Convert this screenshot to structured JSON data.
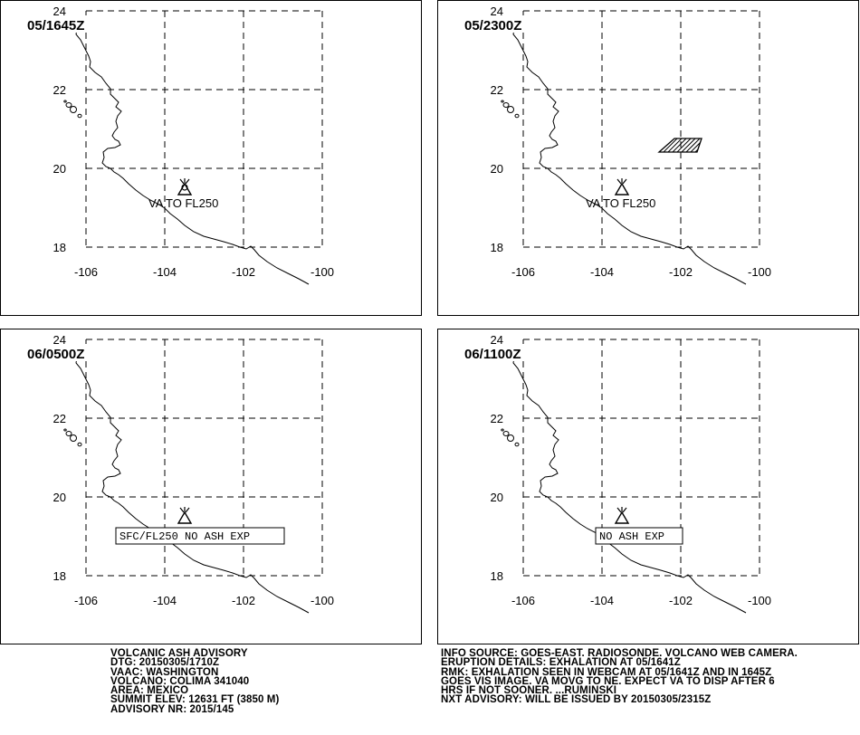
{
  "map": {
    "lon_ticks": [
      "-106",
      "-104",
      "-102",
      "-100"
    ],
    "lat_ticks": [
      "24",
      "22",
      "20",
      "18"
    ]
  },
  "panels": [
    {
      "id": "p1",
      "title": "05/1645Z",
      "label": "VA TO FL250",
      "label_style": "plain",
      "ash_area": false
    },
    {
      "id": "p2",
      "title": "05/2300Z",
      "label": "VA TO FL250",
      "label_style": "plain",
      "ash_area": true
    },
    {
      "id": "p3",
      "title": "06/0500Z",
      "label": "SFC/FL250 NO ASH EXP",
      "label_style": "boxed",
      "ash_area": false
    },
    {
      "id": "p4",
      "title": "06/1100Z",
      "label": "NO ASH EXP",
      "label_style": "boxed",
      "ash_area": false
    }
  ],
  "advisory": {
    "lines": [
      "VOLCANIC ASH ADVISORY",
      "DTG: 20150305/1710Z",
      "VAAC: WASHINGTON",
      "VOLCANO: COLIMA 341040",
      "AREA: MEXICO",
      "SUMMIT ELEV: 12631 FT (3850 M)",
      "ADVISORY NR: 2015/145"
    ]
  },
  "remarks": {
    "lines": [
      "INFO SOURCE: GOES-EAST. RADIOSONDE. VOLCANO WEB CAMERA.",
      "ERUPTION DETAILS: EXHALATION AT 05/1641Z",
      "RMK: EXHALATION SEEN IN WEBCAM AT 05/1641Z AND IN 1645Z",
      "GOES VIS IMAGE. VA MOVG TO NE. EXPECT VA TO DISP AFTER 6",
      "HRS IF NOT SOONER. ...RUMINSKI",
      "NXT ADVISORY: WILL BE ISSUED BY 20150305/2315Z"
    ]
  }
}
